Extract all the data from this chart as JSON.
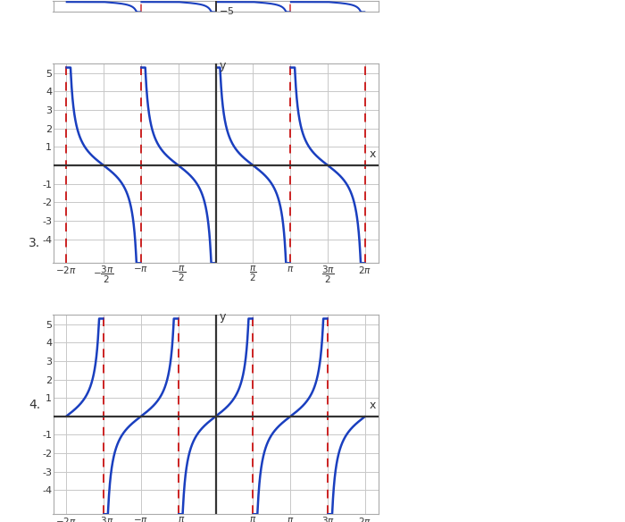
{
  "xlim": [
    -6.83,
    6.83
  ],
  "ylim": [
    -5,
    5
  ],
  "background_color": "#ffffff",
  "grid_color": "#c8c8c8",
  "axis_color": "#333333",
  "curve_color": "#1a3fbf",
  "asymptote_color": "#cc2222",
  "label_color": "#333333",
  "graph3_label": "3.",
  "graph4_label": "4.",
  "pi": 3.14159265358979,
  "figsize": [
    7.0,
    5.84
  ],
  "dpi": 100
}
